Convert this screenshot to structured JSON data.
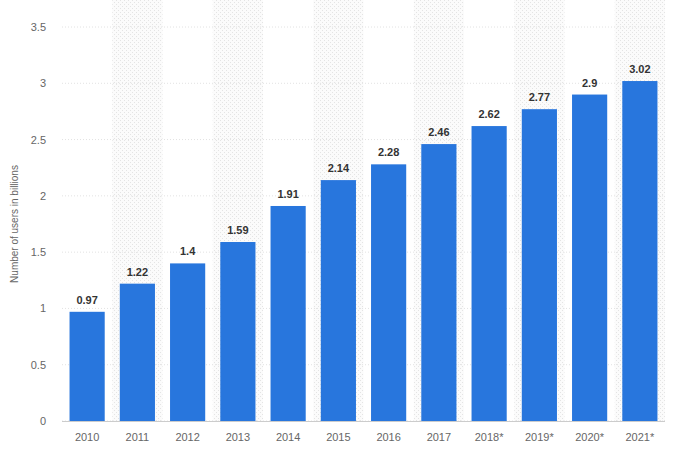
{
  "chart_data": {
    "type": "bar",
    "y_label": "Number of users in billions",
    "categories": [
      "2010",
      "2011",
      "2012",
      "2013",
      "2014",
      "2015",
      "2016",
      "2017",
      "2018*",
      "2019*",
      "2020*",
      "2021*"
    ],
    "values": [
      0.97,
      1.22,
      1.4,
      1.59,
      1.91,
      2.14,
      2.28,
      2.46,
      2.62,
      2.77,
      2.9,
      3.02
    ],
    "color": "#2876dd",
    "ylim": [
      0,
      3.5
    ],
    "yticks": [
      0,
      0.5,
      1,
      1.5,
      2,
      2.5,
      3,
      3.5
    ],
    "grid": true,
    "data_labels": true
  }
}
